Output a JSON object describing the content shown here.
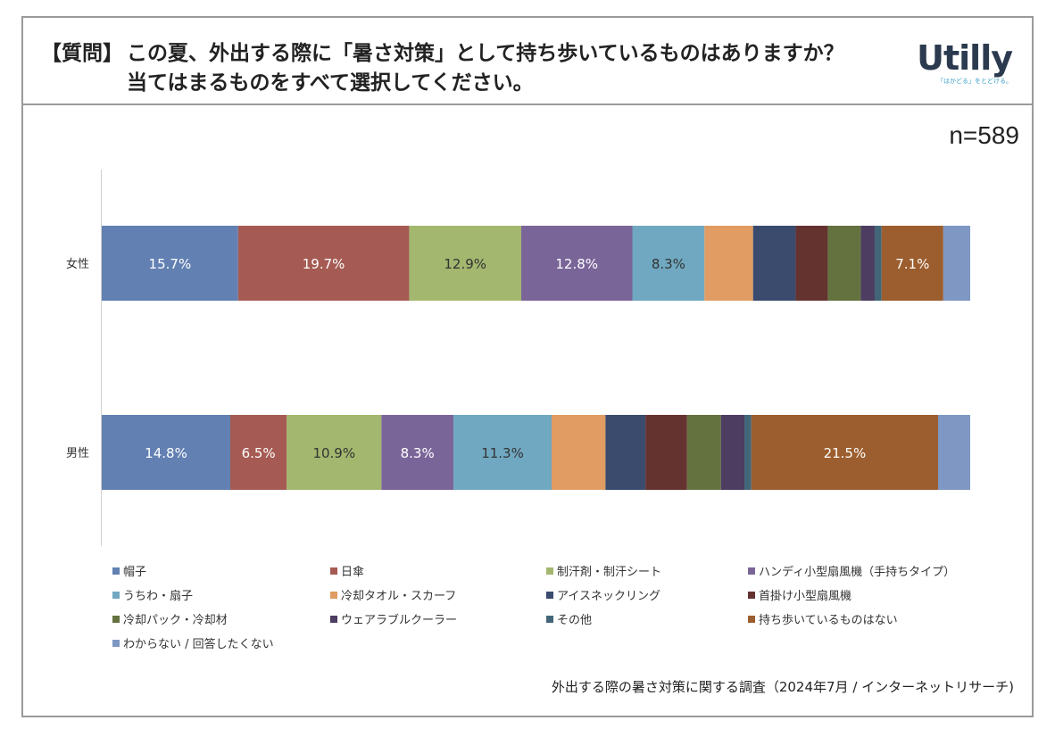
{
  "header": {
    "mark": "【質問】",
    "line1": "この夏、外出する際に「暑さ対策」として持ち歩いているものはありますか？",
    "line2": "当てはまるものをすべて選択してください。"
  },
  "logo": {
    "word": "Utilly",
    "tagline": "「はかどる」をとどける。"
  },
  "sample": "n=589",
  "source": "外出する際の暑さ対策に関する調査（2024年7月 / インターネットリサーチ)",
  "chart_data": {
    "type": "bar",
    "orientation": "horizontal",
    "stacked": "percent",
    "categories": [
      "女性",
      "男性"
    ],
    "series": [
      {
        "name": "帽子",
        "color": "#6280b2",
        "values": [
          15.7,
          14.8
        ],
        "labels": [
          "15.7%",
          "14.8%"
        ]
      },
      {
        "name": "日傘",
        "color": "#a55b53",
        "values": [
          19.7,
          6.5
        ],
        "labels": [
          "19.7%",
          "6.5%"
        ]
      },
      {
        "name": "制汗剤・制汗シート",
        "color": "#a3b76f",
        "values": [
          12.9,
          10.9
        ],
        "labels": [
          "12.9%",
          "10.9%"
        ]
      },
      {
        "name": "ハンディ小型扇風機（手持ちタイプ）",
        "color": "#7a6599",
        "values": [
          12.8,
          8.3
        ],
        "labels": [
          "12.8%",
          "8.3%"
        ]
      },
      {
        "name": "うちわ・扇子",
        "color": "#70a8c1",
        "values": [
          8.3,
          11.3
        ],
        "labels": [
          "8.3%",
          "11.3%"
        ]
      },
      {
        "name": "冷却タオル・スカーフ",
        "color": "#e09c62",
        "values": [
          5.6,
          6.2
        ],
        "labels": [
          "",
          ""
        ]
      },
      {
        "name": "アイスネックリング",
        "color": "#3a4b6e",
        "values": [
          4.9,
          4.6
        ],
        "labels": [
          "",
          ""
        ]
      },
      {
        "name": "首掛け小型扇風機",
        "color": "#64322f",
        "values": [
          3.7,
          4.8
        ],
        "labels": [
          "",
          ""
        ]
      },
      {
        "name": "冷却パック・冷却材",
        "color": "#647240",
        "values": [
          3.8,
          3.9
        ],
        "labels": [
          "",
          ""
        ]
      },
      {
        "name": "ウェアラブルクーラー",
        "color": "#4c3d61",
        "values": [
          1.6,
          2.7
        ],
        "labels": [
          "",
          ""
        ]
      },
      {
        "name": "その他",
        "color": "#426678",
        "values": [
          0.8,
          0.8
        ],
        "labels": [
          "",
          ""
        ]
      },
      {
        "name": "持ち歩いているものはない",
        "color": "#9c5e2e",
        "values": [
          7.1,
          21.5
        ],
        "labels": [
          "7.1%",
          "21.5%"
        ]
      },
      {
        "name": "わからない / 回答したくない",
        "color": "#7e97c3",
        "values": [
          3.1,
          3.7
        ],
        "labels": [
          "",
          ""
        ]
      }
    ],
    "xlim": [
      0,
      100
    ],
    "legend_position": "bottom"
  }
}
